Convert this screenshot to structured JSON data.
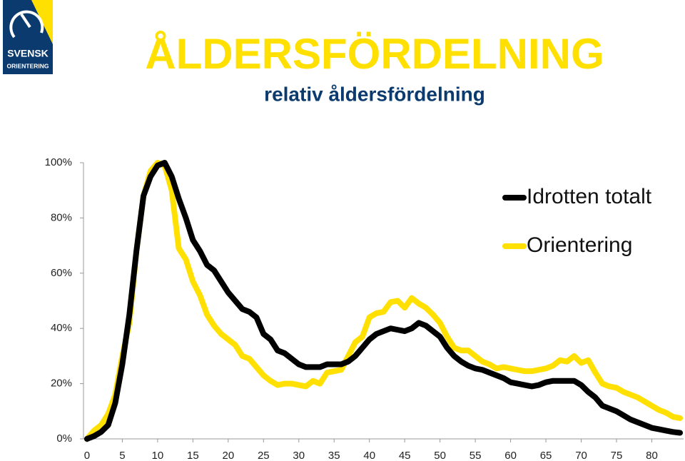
{
  "logo": {
    "line1": "SVENSK",
    "line2": "ORIENTERING"
  },
  "chart_data": {
    "type": "line",
    "title": "ÅLDERSFÖRDELNING",
    "subtitle": "relativ åldersfördelning",
    "x": [
      0,
      1,
      2,
      3,
      4,
      5,
      6,
      7,
      8,
      9,
      10,
      11,
      12,
      13,
      14,
      15,
      16,
      17,
      18,
      19,
      20,
      21,
      22,
      23,
      24,
      25,
      26,
      27,
      28,
      29,
      30,
      31,
      32,
      33,
      34,
      35,
      36,
      37,
      38,
      39,
      40,
      41,
      42,
      43,
      44,
      45,
      46,
      47,
      48,
      49,
      50,
      51,
      52,
      53,
      54,
      55,
      56,
      57,
      58,
      59,
      60,
      61,
      62,
      63,
      64,
      65,
      66,
      67,
      68,
      69,
      70,
      71,
      72,
      73,
      74,
      75,
      76,
      77,
      78,
      79,
      80,
      81,
      82,
      83,
      84
    ],
    "series": [
      {
        "name": "Idrotten totalt",
        "color": "#000000",
        "values": [
          0,
          1,
          2.5,
          5,
          13,
          27,
          45,
          68,
          88,
          95,
          99,
          100,
          95,
          87,
          80,
          72,
          68,
          63,
          61,
          57,
          53,
          50,
          47,
          46,
          44,
          38,
          36,
          32,
          31,
          29,
          27,
          26,
          26,
          26,
          27,
          27,
          27,
          28,
          30,
          33,
          36,
          38,
          39,
          40,
          39.5,
          39,
          40,
          42,
          41,
          39,
          37,
          33,
          30,
          28,
          26.5,
          25.5,
          25,
          24,
          23,
          22,
          20.5,
          20,
          19.5,
          19,
          19.5,
          20.5,
          21,
          21,
          21,
          21,
          19.5,
          17,
          15,
          12,
          11,
          10,
          8.5,
          7,
          6,
          5,
          4,
          3.5,
          3,
          2.5,
          2.2
        ]
      },
      {
        "name": "Orientering",
        "color": "#ffe000",
        "values": [
          0,
          3,
          5,
          9,
          16,
          30,
          42,
          68,
          88,
          97,
          100,
          99,
          90,
          69,
          65,
          57,
          52,
          45,
          41,
          38,
          36,
          34,
          30,
          29,
          26,
          23,
          21,
          19.5,
          20,
          20,
          19.5,
          19,
          21,
          20,
          24,
          24.5,
          25,
          30,
          35,
          37,
          44,
          45.5,
          46,
          49.5,
          50,
          47.5,
          51,
          49,
          47.5,
          45,
          42,
          37,
          33,
          32,
          32,
          30,
          28,
          27,
          25.5,
          26,
          25.5,
          25,
          24.5,
          24.5,
          25,
          25.5,
          26.5,
          28.5,
          28,
          30,
          27.5,
          28.5,
          24,
          20,
          19,
          18.5,
          17,
          16,
          15,
          13.5,
          12,
          10.5,
          9.5,
          8,
          7.5
        ]
      }
    ],
    "xlim": [
      -0.5,
      84.5
    ],
    "xticks": [
      0,
      5,
      10,
      15,
      20,
      25,
      30,
      35,
      40,
      45,
      50,
      55,
      60,
      65,
      70,
      75,
      80
    ],
    "ylim": [
      0,
      100
    ],
    "yticks": [
      {
        "value": 0,
        "label": "0%"
      },
      {
        "value": 20,
        "label": "20%"
      },
      {
        "value": 40,
        "label": "40%"
      },
      {
        "value": 60,
        "label": "60%"
      },
      {
        "value": 80,
        "label": "80%"
      },
      {
        "value": 100,
        "label": "100%"
      }
    ],
    "legend": "upper right",
    "grid": false
  }
}
